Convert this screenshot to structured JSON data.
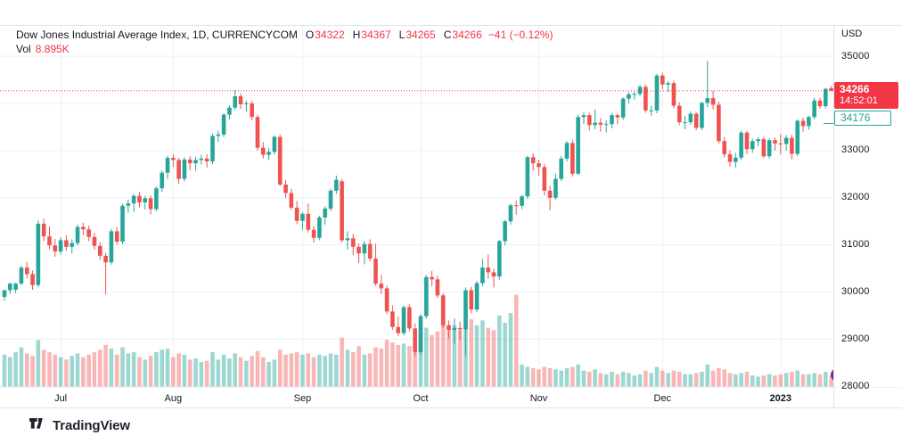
{
  "header": {
    "title": "Dow Jones Industrial Average Index, 1D, CURRENCYCOM",
    "ohlc": [
      {
        "label": "O",
        "value": "34322"
      },
      {
        "label": "H",
        "value": "34367"
      },
      {
        "label": "L",
        "value": "34265"
      },
      {
        "label": "C",
        "value": "34266"
      }
    ],
    "change": "−41 (−0.12%)",
    "vol_label": "Vol",
    "vol_value": "8.895K"
  },
  "price_axis": {
    "currency": "USD",
    "last_price_badge": {
      "value": "34266",
      "countdown": "14:52:01"
    },
    "prev_price_badge": {
      "value": "34176"
    }
  },
  "footer": {
    "brand": "TradingView"
  },
  "colors": {
    "up_candle": "#26a69a",
    "down_candle": "#ef5350",
    "volume_up": "rgba(38,166,154,0.45)",
    "volume_down": "rgba(239,83,80,0.42)",
    "last_price": "#f23645",
    "grid": "#eef0f4",
    "border": "#e0e3eb",
    "text_primary": "#131722",
    "marker_purple": "#7b1fa2"
  },
  "chart_data": {
    "type": "candlestick",
    "title": "Dow Jones Industrial Average Index",
    "interval": "1D",
    "exchange": "CURRENCYCOM",
    "currency": "USD",
    "price_range_shown": [
      28000,
      35000
    ],
    "gridline_step": 1000,
    "last_price": 34266,
    "last_price_countdown": "14:52:01",
    "secondary_price_label": 34176,
    "current_volume_k": 8.895,
    "price_axis_ticks": [
      {
        "price": 35000,
        "label": "35000"
      },
      {
        "price": 33000,
        "label": "33000"
      },
      {
        "price": 32000,
        "label": "32000"
      },
      {
        "price": 31000,
        "label": "31000"
      },
      {
        "price": 30000,
        "label": "30000"
      },
      {
        "price": 29000,
        "label": "29000"
      },
      {
        "price": 28000,
        "label": "28000"
      }
    ],
    "time_axis_ticks": [
      {
        "label": "Jul",
        "index": 10
      },
      {
        "label": "Aug",
        "index": 30
      },
      {
        "label": "Sep",
        "index": 53
      },
      {
        "label": "Oct",
        "index": 74
      },
      {
        "label": "Nov",
        "index": 95
      },
      {
        "label": "Dec",
        "index": 117
      },
      {
        "label": "2023",
        "index": 138,
        "year": true
      }
    ],
    "candles_ohlcv": [
      [
        29900,
        30060,
        29820,
        30040,
        26
      ],
      [
        30040,
        30200,
        29960,
        30180,
        24
      ],
      [
        30050,
        30200,
        29980,
        30180,
        28
      ],
      [
        30180,
        30560,
        30150,
        30520,
        32
      ],
      [
        30520,
        30640,
        30290,
        30380,
        27
      ],
      [
        30380,
        30460,
        30050,
        30150,
        25
      ],
      [
        30150,
        31520,
        30100,
        31450,
        38
      ],
      [
        31450,
        31560,
        31080,
        31180,
        30
      ],
      [
        31180,
        31390,
        30910,
        30990,
        28
      ],
      [
        30990,
        31130,
        30750,
        30860,
        26
      ],
      [
        30860,
        31160,
        30790,
        31100,
        24
      ],
      [
        31100,
        31210,
        30880,
        30960,
        22
      ],
      [
        30960,
        31120,
        30820,
        31040,
        25
      ],
      [
        31040,
        31430,
        30980,
        31380,
        27
      ],
      [
        31380,
        31470,
        31210,
        31330,
        24
      ],
      [
        31330,
        31410,
        31080,
        31170,
        26
      ],
      [
        31170,
        31260,
        30900,
        30980,
        28
      ],
      [
        30980,
        31060,
        30680,
        30770,
        30
      ],
      [
        30770,
        30830,
        29950,
        30630,
        34
      ],
      [
        30630,
        31340,
        30580,
        31290,
        31
      ],
      [
        31290,
        31380,
        31000,
        31070,
        26
      ],
      [
        31070,
        31870,
        31020,
        31830,
        32
      ],
      [
        31830,
        31960,
        31680,
        31880,
        27
      ],
      [
        31880,
        32080,
        31700,
        32040,
        28
      ],
      [
        32040,
        32120,
        31790,
        31900,
        24
      ],
      [
        31900,
        32040,
        31750,
        31990,
        22
      ],
      [
        31990,
        32050,
        31650,
        31760,
        25
      ],
      [
        31760,
        32240,
        31710,
        32200,
        28
      ],
      [
        32200,
        32580,
        32120,
        32530,
        30
      ],
      [
        32530,
        32890,
        32400,
        32845,
        31
      ],
      [
        32845,
        32920,
        32650,
        32800,
        24
      ],
      [
        32800,
        32850,
        32290,
        32400,
        27
      ],
      [
        32400,
        32860,
        32350,
        32810,
        26
      ],
      [
        32810,
        32880,
        32580,
        32730,
        22
      ],
      [
        32730,
        32870,
        32570,
        32800,
        23
      ],
      [
        32800,
        32910,
        32700,
        32830,
        20
      ],
      [
        32830,
        32920,
        32640,
        32770,
        21
      ],
      [
        32770,
        33360,
        32710,
        33310,
        28
      ],
      [
        33310,
        33420,
        33180,
        33340,
        22
      ],
      [
        33340,
        33790,
        33290,
        33760,
        26
      ],
      [
        33760,
        33960,
        33660,
        33910,
        23
      ],
      [
        33910,
        34280,
        33860,
        34150,
        27
      ],
      [
        34150,
        34210,
        33880,
        33980,
        24
      ],
      [
        33980,
        34060,
        33830,
        34000,
        21
      ],
      [
        34000,
        34050,
        33640,
        33710,
        25
      ],
      [
        33710,
        33760,
        33000,
        33060,
        29
      ],
      [
        33060,
        33180,
        32830,
        32910,
        24
      ],
      [
        32910,
        33060,
        32800,
        32970,
        20
      ],
      [
        32970,
        33320,
        32910,
        33290,
        22
      ],
      [
        33290,
        33340,
        32250,
        32280,
        30
      ],
      [
        32280,
        32380,
        31990,
        32100,
        26
      ],
      [
        32100,
        32190,
        31740,
        31790,
        27
      ],
      [
        31790,
        31930,
        31440,
        31510,
        28
      ],
      [
        31510,
        31700,
        31310,
        31660,
        26
      ],
      [
        31660,
        31880,
        31260,
        31320,
        27
      ],
      [
        31320,
        31400,
        31050,
        31150,
        24
      ],
      [
        31150,
        31620,
        31100,
        31580,
        26
      ],
      [
        31580,
        31820,
        31430,
        31770,
        25
      ],
      [
        31770,
        32190,
        31720,
        32150,
        27
      ],
      [
        32150,
        32470,
        32080,
        32380,
        26
      ],
      [
        32350,
        32400,
        31050,
        31100,
        40
      ],
      [
        31100,
        31290,
        30900,
        31140,
        30
      ],
      [
        31140,
        31230,
        30780,
        30960,
        28
      ],
      [
        30960,
        31030,
        30620,
        30820,
        33
      ],
      [
        30820,
        31080,
        30590,
        31020,
        26
      ],
      [
        31020,
        31120,
        30650,
        30710,
        27
      ],
      [
        30710,
        31030,
        30130,
        30180,
        32
      ],
      [
        30180,
        30360,
        29960,
        30080,
        31
      ],
      [
        30080,
        30140,
        29540,
        29590,
        38
      ],
      [
        29590,
        29720,
        29200,
        29260,
        36
      ],
      [
        29260,
        29480,
        29070,
        29130,
        34
      ],
      [
        29130,
        29720,
        29080,
        29680,
        35
      ],
      [
        29680,
        29740,
        29170,
        29230,
        33
      ],
      [
        29230,
        29340,
        28650,
        28730,
        40
      ],
      [
        28730,
        29530,
        28680,
        29490,
        44
      ],
      [
        29490,
        30360,
        29440,
        30320,
        48
      ],
      [
        30320,
        30450,
        30120,
        30270,
        42
      ],
      [
        30270,
        30340,
        29880,
        29930,
        45
      ],
      [
        29930,
        29980,
        29240,
        29300,
        52
      ],
      [
        29300,
        29400,
        29020,
        29200,
        48
      ],
      [
        29200,
        29440,
        28900,
        29240,
        50
      ],
      [
        29240,
        29380,
        28990,
        29210,
        46
      ],
      [
        29210,
        30100,
        28660,
        30040,
        62
      ],
      [
        30040,
        30110,
        29550,
        29630,
        55
      ],
      [
        29630,
        30240,
        29580,
        30190,
        50
      ],
      [
        30190,
        30700,
        30120,
        30520,
        54
      ],
      [
        30520,
        30800,
        30280,
        30420,
        48
      ],
      [
        30420,
        30500,
        30100,
        30330,
        46
      ],
      [
        30330,
        31110,
        30260,
        31080,
        58
      ],
      [
        31080,
        31530,
        30990,
        31500,
        52
      ],
      [
        31500,
        31870,
        31430,
        31840,
        60
      ],
      [
        31840,
        31940,
        31640,
        31830,
        75
      ],
      [
        31830,
        32060,
        31760,
        32030,
        18
      ],
      [
        32030,
        32890,
        31970,
        32860,
        16
      ],
      [
        32860,
        32940,
        32570,
        32730,
        15
      ],
      [
        32730,
        32810,
        32470,
        32650,
        14
      ],
      [
        32650,
        32720,
        32050,
        32150,
        16
      ],
      [
        32150,
        32250,
        31730,
        32000,
        15
      ],
      [
        32000,
        32510,
        31950,
        32400,
        14
      ],
      [
        32400,
        32880,
        32350,
        32830,
        13
      ],
      [
        32830,
        33200,
        32770,
        33160,
        15
      ],
      [
        33160,
        33230,
        32450,
        32510,
        16
      ],
      [
        32510,
        33760,
        32480,
        33710,
        18
      ],
      [
        33710,
        33810,
        33560,
        33750,
        13
      ],
      [
        33750,
        33800,
        33420,
        33540,
        12
      ],
      [
        33540,
        33870,
        33450,
        33590,
        14
      ],
      [
        33590,
        33690,
        33400,
        33550,
        11
      ],
      [
        33550,
        33640,
        33380,
        33560,
        10
      ],
      [
        33560,
        33800,
        33470,
        33750,
        12
      ],
      [
        33750,
        33780,
        33560,
        33700,
        10
      ],
      [
        33700,
        34130,
        33650,
        34100,
        12
      ],
      [
        34100,
        34240,
        34000,
        34190,
        11
      ],
      [
        34190,
        34250,
        34080,
        34200,
        9
      ],
      [
        34200,
        34390,
        34150,
        34350,
        10
      ],
      [
        34350,
        34400,
        33800,
        33850,
        13
      ],
      [
        33850,
        33950,
        33740,
        33850,
        11
      ],
      [
        33850,
        34620,
        33790,
        34590,
        16
      ],
      [
        34590,
        34650,
        34300,
        34400,
        13
      ],
      [
        34400,
        34470,
        34240,
        34430,
        11
      ],
      [
        34430,
        34480,
        33890,
        33950,
        13
      ],
      [
        33950,
        34020,
        33540,
        33600,
        12
      ],
      [
        33600,
        33730,
        33450,
        33600,
        10
      ],
      [
        33600,
        33830,
        33550,
        33780,
        10
      ],
      [
        33780,
        33820,
        33430,
        33480,
        11
      ],
      [
        33480,
        34030,
        33430,
        34010,
        12
      ],
      [
        34010,
        34900,
        33920,
        34110,
        18
      ],
      [
        34110,
        34270,
        33870,
        33970,
        13
      ],
      [
        33970,
        34030,
        33150,
        33200,
        15
      ],
      [
        33200,
        33290,
        32850,
        32920,
        14
      ],
      [
        32920,
        33000,
        32660,
        32760,
        11
      ],
      [
        32760,
        32950,
        32640,
        32850,
        10
      ],
      [
        32850,
        33420,
        32800,
        33380,
        11
      ],
      [
        33380,
        33410,
        32920,
        33030,
        12
      ],
      [
        33030,
        33250,
        32950,
        33200,
        9
      ],
      [
        33200,
        33280,
        33090,
        33240,
        8
      ],
      [
        33240,
        33290,
        32840,
        32880,
        9
      ],
      [
        32880,
        33260,
        32830,
        33220,
        10
      ],
      [
        33220,
        33270,
        33000,
        33150,
        9
      ],
      [
        33150,
        33350,
        32920,
        33140,
        10
      ],
      [
        33140,
        33330,
        33000,
        33270,
        11
      ],
      [
        33270,
        33330,
        32810,
        32930,
        12
      ],
      [
        32930,
        33660,
        32880,
        33630,
        13
      ],
      [
        33630,
        33700,
        33400,
        33520,
        10
      ],
      [
        33520,
        33740,
        33440,
        33710,
        10
      ],
      [
        33710,
        34120,
        33660,
        34060,
        11
      ],
      [
        34060,
        34120,
        33890,
        33940,
        10
      ],
      [
        33940,
        34330,
        33890,
        34307,
        12
      ],
      [
        34322,
        34367,
        34265,
        34266,
        8.895
      ]
    ]
  }
}
